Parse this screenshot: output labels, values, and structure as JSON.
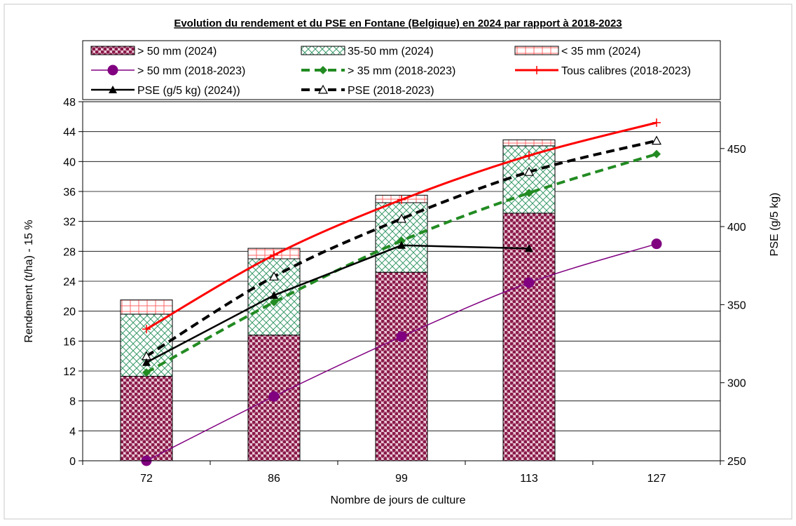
{
  "chart_data": {
    "type": "bar",
    "title": "Evolution du rendement et du PSE en Fontane (Belgique) en 2024 par rapport à 2018-2023",
    "xlabel": "Nombre de jours de culture",
    "ylabel": "Rendement (t/ha) - 15 %",
    "y2label": "PSE (g/5 kg)",
    "categories": [
      "72",
      "86",
      "99",
      "113",
      "127"
    ],
    "ylim": [
      0,
      48
    ],
    "yticks": [
      0,
      4,
      8,
      12,
      16,
      20,
      24,
      28,
      32,
      36,
      40,
      44,
      48
    ],
    "y2lim": [
      250,
      480
    ],
    "y2ticks": [
      250,
      300,
      350,
      400,
      450
    ],
    "grid": true,
    "legend_position": "top",
    "stacked_bars": [
      {
        "name": "> 50 mm (2024)",
        "pattern": "dots",
        "color": "#8b1a4a",
        "values": [
          11.3,
          16.8,
          25.2,
          33.1,
          null
        ]
      },
      {
        "name": "35-50 mm (2024)",
        "pattern": "crosshatch",
        "color": "#2e8b57",
        "values": [
          8.3,
          10.2,
          9.3,
          9.0,
          null
        ]
      },
      {
        "name": "< 35 mm (2024)",
        "pattern": "grid",
        "color": "#ff6666",
        "values": [
          1.9,
          1.4,
          1.0,
          0.8,
          null
        ]
      }
    ],
    "line_series": [
      {
        "name": "> 50 mm (2018-2023)",
        "axis": "left",
        "color": "#800080",
        "style": "solid-thin",
        "marker": "circle",
        "values": [
          0,
          8.6,
          16.6,
          23.8,
          29.0
        ]
      },
      {
        "name": "> 35 mm (2018-2023)",
        "axis": "left",
        "color": "#228b22",
        "style": "dashed-thick",
        "marker": "diamond",
        "values": [
          11.8,
          21.2,
          29.4,
          35.8,
          41.0
        ]
      },
      {
        "name": "Tous calibres (2018-2023)",
        "axis": "left",
        "color": "#ff0000",
        "style": "solid-thick",
        "marker": "plus",
        "values": [
          17.6,
          27.5,
          34.9,
          40.8,
          45.2
        ]
      },
      {
        "name": "PSE (g/5 kg) (2024))",
        "axis": "right",
        "color": "#000000",
        "style": "solid-medium",
        "marker": "triangle-filled",
        "values": [
          313,
          356,
          388,
          386,
          null
        ]
      },
      {
        "name": "PSE (2018-2023)",
        "axis": "right",
        "color": "#000000",
        "style": "dashed-thick",
        "marker": "triangle-open",
        "values": [
          317,
          368,
          405,
          435,
          455
        ]
      }
    ]
  }
}
